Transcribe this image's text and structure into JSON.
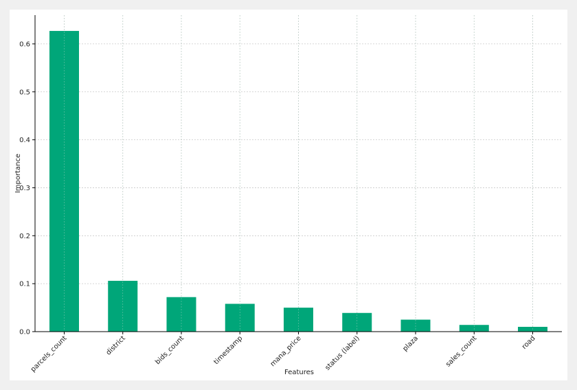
{
  "chart_data": {
    "type": "bar",
    "title": "",
    "xlabel": "Features",
    "ylabel": "Importance",
    "categories": [
      "parcels_count",
      "district",
      "bids_count",
      "timestamp",
      "mana_price",
      "status (label)",
      "plaza",
      "sales_count",
      "road"
    ],
    "values": [
      0.627,
      0.106,
      0.072,
      0.058,
      0.05,
      0.039,
      0.025,
      0.014,
      0.01
    ],
    "ylim": [
      0,
      0.66
    ],
    "yticks": [
      "0.0",
      "0.1",
      "0.2",
      "0.3",
      "0.4",
      "0.5",
      "0.6"
    ],
    "grid": true,
    "legend": "none",
    "colors": {
      "bar": "#00a679",
      "grid": "#c8c8c8",
      "axis": "#000000",
      "figure_bg": "#ffffff",
      "page_bg": "#f0f0f0"
    }
  }
}
